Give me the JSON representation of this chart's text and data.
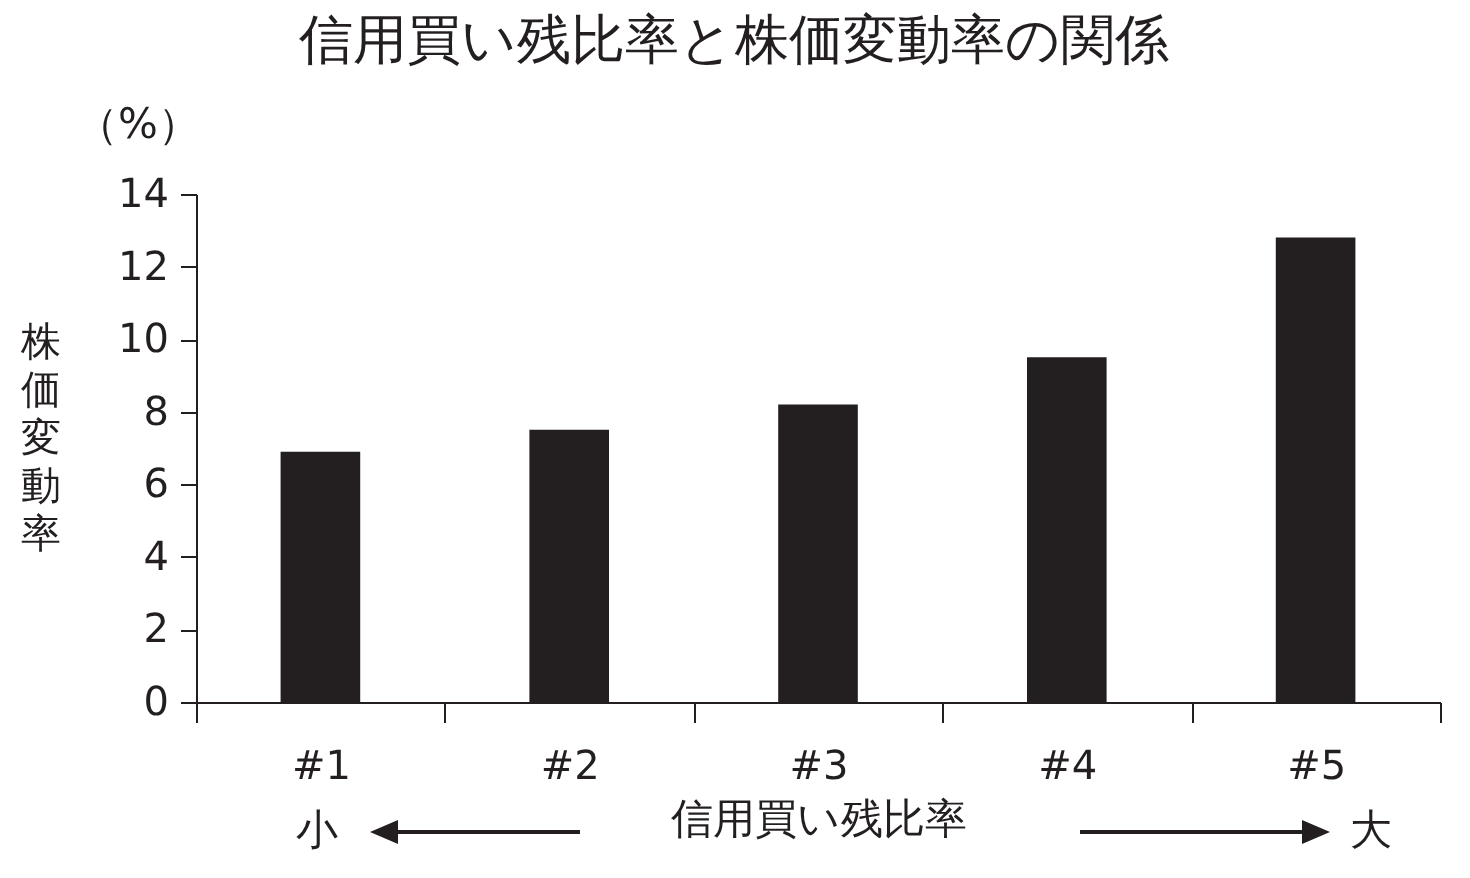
{
  "chart_data": {
    "type": "bar",
    "title": "信用買い残比率と株価変動率の関係",
    "xlabel": "信用買い残比率",
    "ylabel": "株価変動率",
    "annotations": [
      "（%）",
      "小",
      "大"
    ],
    "categories": [
      "#1",
      "#2",
      "#3",
      "#4",
      "#5"
    ],
    "values": [
      6.9,
      7.5,
      8.2,
      9.5,
      12.8
    ],
    "color": "#231f20",
    "ylim": [
      0,
      14
    ],
    "yticks": [
      0,
      2,
      4,
      6,
      8,
      10,
      12,
      14
    ],
    "grid": false
  }
}
